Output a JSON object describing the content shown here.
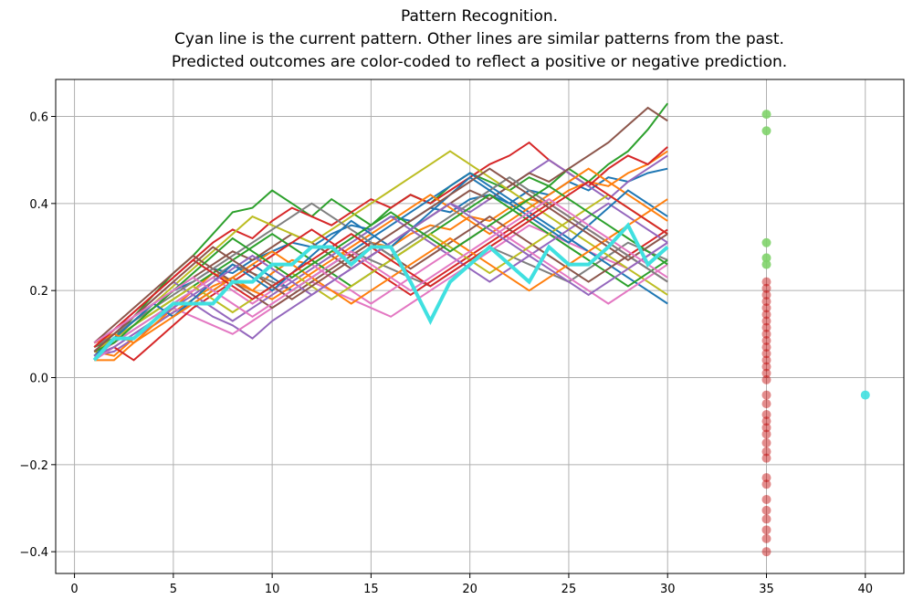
{
  "chart_data": {
    "type": "line",
    "title": [
      "Pattern Recognition.",
      "Cyan line is the current pattern. Other lines are similar patterns from the past.",
      "Predicted outcomes are color-coded to reflect a positive or negative prediction."
    ],
    "xlabel": "",
    "ylabel": "",
    "xlim": [
      -0.95,
      41.95
    ],
    "ylim": [
      -0.45,
      0.685
    ],
    "grid": true,
    "x_ticks": [
      0,
      5,
      10,
      15,
      20,
      25,
      30,
      35,
      40
    ],
    "y_ticks": [
      -0.4,
      -0.2,
      0.0,
      0.2,
      0.4,
      0.6
    ],
    "x_tick_labels": [
      "0",
      "5",
      "10",
      "15",
      "20",
      "25",
      "30",
      "35",
      "40"
    ],
    "y_tick_labels": [
      "−0.4",
      "−0.2",
      "0.0",
      "0.2",
      "0.4",
      "0.6"
    ],
    "past_pattern_colors": [
      "#1f77b4",
      "#ff7f0e",
      "#2ca02c",
      "#d62728",
      "#9467bd",
      "#8c564b",
      "#e377c2",
      "#7f7f7f",
      "#bcbd22"
    ],
    "past_patterns": [
      [
        0.08,
        0.1,
        0.13,
        0.17,
        0.2,
        0.22,
        0.25,
        0.24,
        0.27,
        0.29,
        0.31,
        0.3,
        0.33,
        0.35,
        0.34,
        0.37,
        0.36,
        0.39,
        0.38,
        0.41,
        0.42,
        0.4,
        0.43,
        0.42,
        0.45,
        0.43,
        0.46,
        0.45,
        0.47,
        0.48
      ],
      [
        0.06,
        0.05,
        0.09,
        0.12,
        0.15,
        0.18,
        0.21,
        0.23,
        0.2,
        0.24,
        0.27,
        0.26,
        0.29,
        0.28,
        0.31,
        0.3,
        0.33,
        0.35,
        0.34,
        0.37,
        0.36,
        0.39,
        0.41,
        0.4,
        0.43,
        0.45,
        0.44,
        0.47,
        0.49,
        0.52
      ],
      [
        0.05,
        0.09,
        0.14,
        0.19,
        0.24,
        0.28,
        0.33,
        0.38,
        0.39,
        0.43,
        0.4,
        0.37,
        0.41,
        0.38,
        0.35,
        0.39,
        0.42,
        0.4,
        0.44,
        0.47,
        0.45,
        0.43,
        0.46,
        0.44,
        0.48,
        0.45,
        0.49,
        0.52,
        0.57,
        0.63
      ],
      [
        0.07,
        0.11,
        0.15,
        0.19,
        0.23,
        0.27,
        0.31,
        0.34,
        0.32,
        0.36,
        0.39,
        0.37,
        0.35,
        0.38,
        0.41,
        0.39,
        0.42,
        0.4,
        0.43,
        0.46,
        0.49,
        0.51,
        0.54,
        0.5,
        0.47,
        0.44,
        0.48,
        0.51,
        0.49,
        0.53
      ],
      [
        0.05,
        0.06,
        0.09,
        0.12,
        0.15,
        0.17,
        0.14,
        0.12,
        0.09,
        0.13,
        0.16,
        0.19,
        0.22,
        0.25,
        0.28,
        0.31,
        0.34,
        0.37,
        0.4,
        0.38,
        0.41,
        0.44,
        0.47,
        0.5,
        0.47,
        0.44,
        0.41,
        0.45,
        0.48,
        0.51
      ],
      [
        0.08,
        0.1,
        0.13,
        0.16,
        0.2,
        0.23,
        0.26,
        0.29,
        0.27,
        0.3,
        0.33,
        0.31,
        0.28,
        0.25,
        0.28,
        0.31,
        0.34,
        0.37,
        0.4,
        0.43,
        0.41,
        0.44,
        0.47,
        0.45,
        0.48,
        0.51,
        0.54,
        0.58,
        0.62,
        0.59
      ],
      [
        0.04,
        0.07,
        0.1,
        0.13,
        0.16,
        0.14,
        0.12,
        0.1,
        0.13,
        0.16,
        0.19,
        0.22,
        0.2,
        0.18,
        0.16,
        0.14,
        0.17,
        0.2,
        0.23,
        0.26,
        0.29,
        0.32,
        0.35,
        0.33,
        0.31,
        0.29,
        0.27,
        0.25,
        0.28,
        0.31
      ],
      [
        0.06,
        0.08,
        0.11,
        0.14,
        0.17,
        0.2,
        0.23,
        0.26,
        0.24,
        0.22,
        0.2,
        0.23,
        0.26,
        0.29,
        0.27,
        0.25,
        0.23,
        0.21,
        0.24,
        0.27,
        0.3,
        0.28,
        0.26,
        0.24,
        0.22,
        0.25,
        0.28,
        0.31,
        0.29,
        0.27
      ],
      [
        0.05,
        0.09,
        0.13,
        0.17,
        0.21,
        0.25,
        0.29,
        0.33,
        0.37,
        0.35,
        0.33,
        0.31,
        0.34,
        0.37,
        0.4,
        0.43,
        0.46,
        0.49,
        0.52,
        0.49,
        0.46,
        0.43,
        0.4,
        0.37,
        0.34,
        0.31,
        0.28,
        0.25,
        0.22,
        0.19
      ],
      [
        0.08,
        0.11,
        0.14,
        0.17,
        0.14,
        0.17,
        0.2,
        0.23,
        0.26,
        0.23,
        0.2,
        0.23,
        0.26,
        0.29,
        0.32,
        0.35,
        0.38,
        0.41,
        0.44,
        0.47,
        0.44,
        0.41,
        0.38,
        0.35,
        0.32,
        0.29,
        0.26,
        0.23,
        0.2,
        0.17
      ],
      [
        0.04,
        0.04,
        0.08,
        0.12,
        0.16,
        0.2,
        0.24,
        0.22,
        0.2,
        0.18,
        0.21,
        0.24,
        0.27,
        0.3,
        0.33,
        0.36,
        0.39,
        0.42,
        0.39,
        0.36,
        0.33,
        0.36,
        0.39,
        0.42,
        0.45,
        0.48,
        0.45,
        0.42,
        0.39,
        0.36
      ],
      [
        0.07,
        0.09,
        0.12,
        0.15,
        0.18,
        0.21,
        0.24,
        0.27,
        0.3,
        0.33,
        0.3,
        0.27,
        0.24,
        0.21,
        0.24,
        0.27,
        0.3,
        0.33,
        0.36,
        0.39,
        0.42,
        0.39,
        0.36,
        0.33,
        0.3,
        0.27,
        0.24,
        0.21,
        0.24,
        0.27
      ],
      [
        0.05,
        0.07,
        0.04,
        0.08,
        0.12,
        0.16,
        0.19,
        0.22,
        0.25,
        0.28,
        0.31,
        0.34,
        0.31,
        0.28,
        0.25,
        0.22,
        0.19,
        0.22,
        0.25,
        0.28,
        0.31,
        0.34,
        0.37,
        0.4,
        0.37,
        0.34,
        0.31,
        0.28,
        0.31,
        0.34
      ],
      [
        0.06,
        0.1,
        0.14,
        0.18,
        0.22,
        0.19,
        0.16,
        0.13,
        0.16,
        0.19,
        0.22,
        0.25,
        0.28,
        0.31,
        0.34,
        0.37,
        0.34,
        0.31,
        0.28,
        0.25,
        0.22,
        0.25,
        0.28,
        0.31,
        0.34,
        0.37,
        0.4,
        0.37,
        0.34,
        0.31
      ],
      [
        0.08,
        0.12,
        0.16,
        0.2,
        0.24,
        0.28,
        0.25,
        0.22,
        0.19,
        0.16,
        0.19,
        0.22,
        0.25,
        0.28,
        0.31,
        0.28,
        0.25,
        0.28,
        0.31,
        0.34,
        0.37,
        0.34,
        0.31,
        0.28,
        0.25,
        0.22,
        0.25,
        0.28,
        0.25,
        0.22
      ],
      [
        0.05,
        0.08,
        0.11,
        0.14,
        0.17,
        0.2,
        0.23,
        0.2,
        0.17,
        0.2,
        0.23,
        0.26,
        0.23,
        0.2,
        0.17,
        0.2,
        0.23,
        0.26,
        0.29,
        0.32,
        0.35,
        0.32,
        0.29,
        0.26,
        0.23,
        0.2,
        0.17,
        0.2,
        0.23,
        0.26
      ],
      [
        0.07,
        0.1,
        0.13,
        0.16,
        0.19,
        0.22,
        0.25,
        0.28,
        0.31,
        0.34,
        0.37,
        0.4,
        0.37,
        0.34,
        0.31,
        0.28,
        0.31,
        0.34,
        0.37,
        0.4,
        0.43,
        0.46,
        0.43,
        0.4,
        0.37,
        0.34,
        0.31,
        0.28,
        0.25,
        0.22
      ],
      [
        0.06,
        0.09,
        0.12,
        0.15,
        0.18,
        0.21,
        0.18,
        0.15,
        0.18,
        0.21,
        0.24,
        0.21,
        0.18,
        0.21,
        0.24,
        0.27,
        0.3,
        0.33,
        0.3,
        0.27,
        0.24,
        0.27,
        0.3,
        0.33,
        0.36,
        0.39,
        0.42,
        0.39,
        0.36,
        0.33
      ],
      [
        0.05,
        0.09,
        0.13,
        0.17,
        0.14,
        0.18,
        0.22,
        0.26,
        0.23,
        0.2,
        0.24,
        0.28,
        0.32,
        0.36,
        0.33,
        0.3,
        0.34,
        0.38,
        0.42,
        0.46,
        0.43,
        0.4,
        0.37,
        0.34,
        0.31,
        0.35,
        0.39,
        0.43,
        0.4,
        0.37
      ],
      [
        0.08,
        0.1,
        0.08,
        0.11,
        0.14,
        0.17,
        0.2,
        0.23,
        0.26,
        0.29,
        0.26,
        0.23,
        0.2,
        0.17,
        0.2,
        0.23,
        0.26,
        0.29,
        0.32,
        0.29,
        0.26,
        0.23,
        0.2,
        0.23,
        0.26,
        0.29,
        0.32,
        0.35,
        0.38,
        0.41
      ],
      [
        0.06,
        0.08,
        0.12,
        0.16,
        0.2,
        0.24,
        0.28,
        0.32,
        0.29,
        0.26,
        0.23,
        0.26,
        0.29,
        0.32,
        0.35,
        0.38,
        0.35,
        0.32,
        0.29,
        0.32,
        0.35,
        0.38,
        0.41,
        0.44,
        0.41,
        0.38,
        0.35,
        0.32,
        0.29,
        0.26
      ],
      [
        0.07,
        0.11,
        0.15,
        0.19,
        0.23,
        0.27,
        0.24,
        0.21,
        0.18,
        0.21,
        0.24,
        0.27,
        0.3,
        0.33,
        0.3,
        0.27,
        0.24,
        0.21,
        0.24,
        0.27,
        0.3,
        0.33,
        0.36,
        0.39,
        0.42,
        0.45,
        0.42,
        0.39,
        0.36,
        0.33
      ],
      [
        0.05,
        0.07,
        0.1,
        0.13,
        0.16,
        0.19,
        0.22,
        0.25,
        0.28,
        0.25,
        0.22,
        0.19,
        0.22,
        0.25,
        0.28,
        0.31,
        0.34,
        0.37,
        0.4,
        0.37,
        0.34,
        0.31,
        0.28,
        0.25,
        0.22,
        0.19,
        0.22,
        0.25,
        0.28,
        0.31
      ],
      [
        0.06,
        0.1,
        0.14,
        0.18,
        0.22,
        0.26,
        0.3,
        0.27,
        0.24,
        0.21,
        0.18,
        0.21,
        0.24,
        0.27,
        0.3,
        0.33,
        0.36,
        0.39,
        0.42,
        0.45,
        0.48,
        0.45,
        0.42,
        0.39,
        0.36,
        0.33,
        0.3,
        0.27,
        0.3,
        0.33
      ],
      [
        0.08,
        0.11,
        0.14,
        0.17,
        0.2,
        0.23,
        0.2,
        0.17,
        0.14,
        0.17,
        0.2,
        0.23,
        0.26,
        0.29,
        0.26,
        0.23,
        0.2,
        0.23,
        0.26,
        0.29,
        0.32,
        0.35,
        0.38,
        0.41,
        0.38,
        0.35,
        0.32,
        0.29,
        0.26,
        0.23
      ]
    ],
    "current_pattern": {
      "color": "#40e0e0",
      "x": [
        1,
        2,
        3,
        4,
        5,
        6,
        7,
        8,
        9,
        10,
        11,
        12,
        13,
        14,
        15,
        16,
        17,
        18,
        19,
        20,
        21,
        22,
        23,
        24,
        25,
        26,
        27,
        28,
        29,
        30
      ],
      "values": [
        0.04,
        0.09,
        0.09,
        0.13,
        0.17,
        0.17,
        0.17,
        0.22,
        0.22,
        0.26,
        0.26,
        0.3,
        0.3,
        0.26,
        0.3,
        0.3,
        0.22,
        0.13,
        0.22,
        0.26,
        0.3,
        0.26,
        0.22,
        0.3,
        0.26,
        0.26,
        0.3,
        0.35,
        0.26,
        0.3
      ]
    },
    "predicted_outcomes": {
      "x": 35,
      "positive_color": "#7fd36a",
      "negative_color": "#c00000",
      "positive": [
        0.605,
        0.567,
        0.31,
        0.275,
        0.26
      ],
      "negative": [
        0.22,
        0.205,
        0.19,
        0.175,
        0.16,
        0.145,
        0.13,
        0.115,
        0.1,
        0.085,
        0.07,
        0.055,
        0.04,
        0.025,
        0.01,
        -0.005,
        -0.04,
        -0.06,
        -0.085,
        -0.1,
        -0.115,
        -0.13,
        -0.15,
        -0.17,
        -0.185,
        -0.23,
        -0.245,
        -0.28,
        -0.305,
        -0.325,
        -0.35,
        -0.37,
        -0.4
      ]
    },
    "current_outcome": {
      "x": 40,
      "y": -0.04,
      "color": "#40e0e0"
    }
  }
}
